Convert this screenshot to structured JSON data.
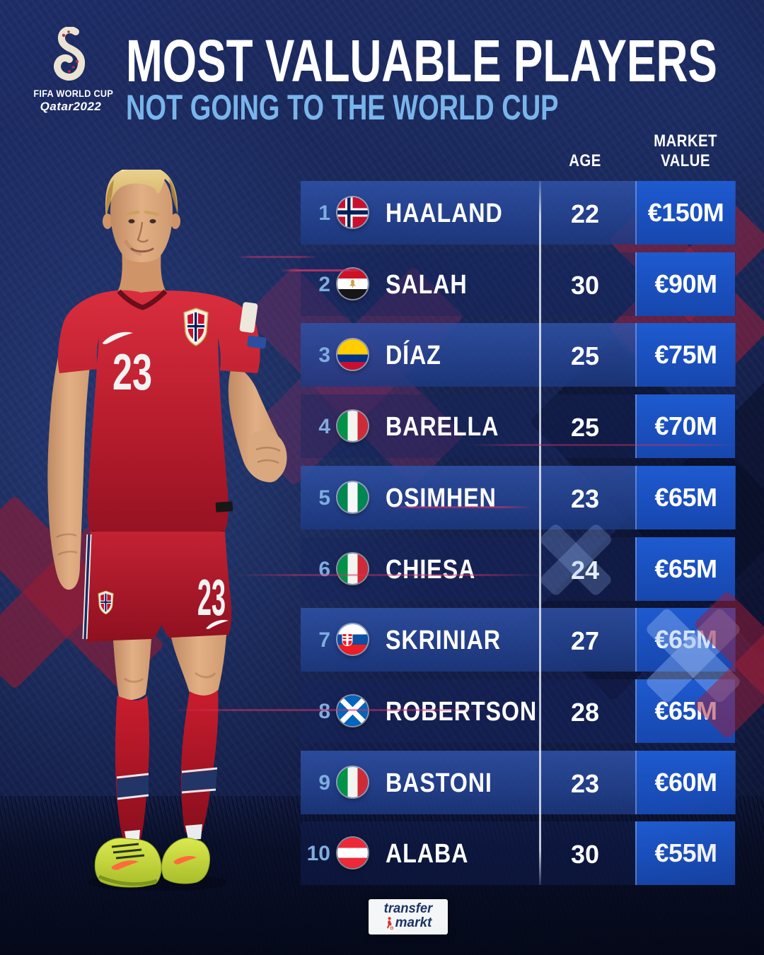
{
  "header": {
    "title": "MOST VALUABLE PLAYERS",
    "subtitle": "NOT GOING TO THE WORLD CUP"
  },
  "fifa_logo": {
    "line1": "FIFA WORLD CUP",
    "line2": "Qatar2022"
  },
  "table": {
    "age_header": "AGE",
    "market_value_header_line1": "MARKET",
    "market_value_header_line2": "VALUE",
    "players": [
      {
        "rank": "1",
        "flag": "norway",
        "name": "HAALAND",
        "age": "22",
        "value": "€150M"
      },
      {
        "rank": "2",
        "flag": "egypt",
        "name": "SALAH",
        "age": "30",
        "value": "€90M"
      },
      {
        "rank": "3",
        "flag": "colombia",
        "name": "DÍAZ",
        "age": "25",
        "value": "€75M"
      },
      {
        "rank": "4",
        "flag": "italy",
        "name": "BARELLA",
        "age": "25",
        "value": "€70M"
      },
      {
        "rank": "5",
        "flag": "nigeria",
        "name": "OSIMHEN",
        "age": "23",
        "value": "€65M"
      },
      {
        "rank": "6",
        "flag": "italy",
        "name": "CHIESA",
        "age": "24",
        "value": "€65M"
      },
      {
        "rank": "7",
        "flag": "slovakia",
        "name": "SKRINIAR",
        "age": "27",
        "value": "€65M"
      },
      {
        "rank": "8",
        "flag": "scotland",
        "name": "ROBERTSON",
        "age": "28",
        "value": "€65M"
      },
      {
        "rank": "9",
        "flag": "italy",
        "name": "BASTONI",
        "age": "23",
        "value": "€60M"
      },
      {
        "rank": "10",
        "flag": "austria",
        "name": "ALABA",
        "age": "30",
        "value": "€55M"
      }
    ]
  },
  "photo": {
    "jersey_number": "23",
    "shorts_number": "23"
  },
  "footer": {
    "brand_line1": "transfer",
    "brand_line2": "markt"
  },
  "colors": {
    "value_cell_blue": "#1e5ad0",
    "row_panel_blue": "#2f52a8",
    "rank_blue": "#7fade0",
    "subtitle_blue": "#79b5ea",
    "accent_red": "#a0203a",
    "background_navy": "#17244f"
  }
}
